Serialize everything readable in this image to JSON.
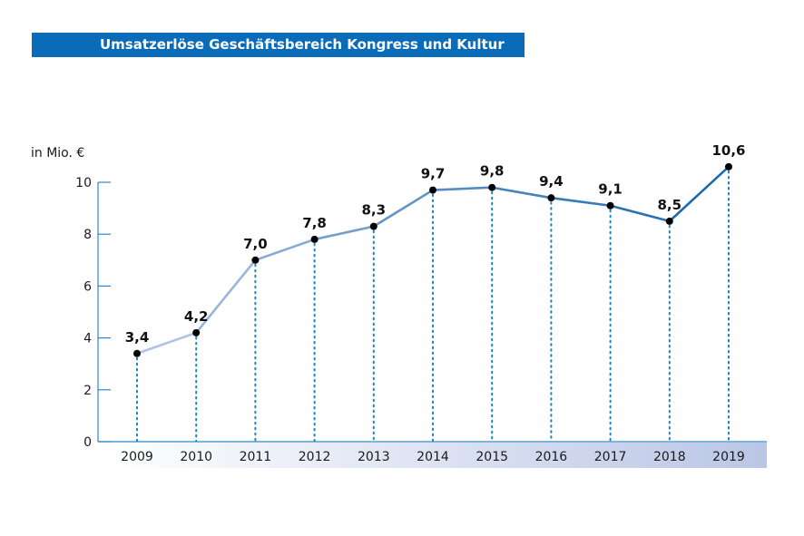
{
  "chart_data": {
    "type": "line",
    "title": "Umsatzerlöse Geschäftsbereich Kongress und Kultur",
    "ylabel": "in Mio. €",
    "xlabel": "",
    "categories": [
      "2009",
      "2010",
      "2011",
      "2012",
      "2013",
      "2014",
      "2015",
      "2016",
      "2017",
      "2018",
      "2019"
    ],
    "values": [
      3.4,
      4.2,
      7.0,
      7.8,
      8.3,
      9.7,
      9.8,
      9.4,
      9.1,
      8.5,
      10.6
    ],
    "value_labels": [
      "3,4",
      "4,2",
      "7,0",
      "7,8",
      "8,3",
      "9,7",
      "9,8",
      "9,4",
      "9,1",
      "8,5",
      "10,6"
    ],
    "ylim": [
      0,
      10
    ],
    "yticks": [
      0,
      2,
      4,
      6,
      8,
      10
    ],
    "ytick_labels": [
      "0",
      "2",
      "4",
      "6",
      "8",
      "10"
    ],
    "grid": false,
    "colors": {
      "title_bar": "#0a6bb8",
      "line_start": "#c3cfe8",
      "line_end": "#1466ad",
      "markers": "#000000",
      "drop_lines": "#1a86c4",
      "axis": "#2e88c6",
      "band_start": "#ffffff",
      "band_end": "#bac6e6"
    }
  }
}
